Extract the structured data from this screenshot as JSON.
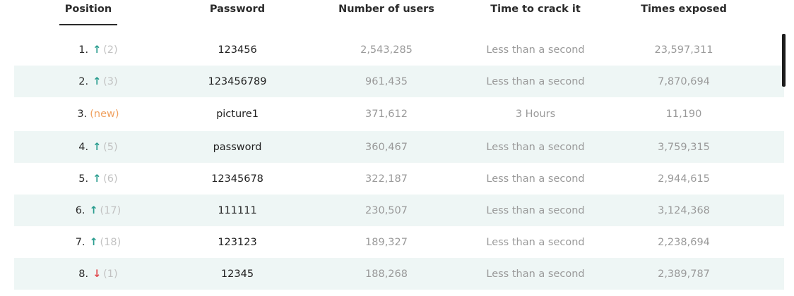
{
  "header": {
    "position": "Position",
    "password": "Password",
    "users": "Number of users",
    "time": "Time to crack it",
    "exposed": "Times exposed"
  },
  "colors": {
    "row_alt": "#eef6f5",
    "arrow_up": "#2a9d8f",
    "arrow_down": "#e0474c",
    "new_badge": "#f0a160",
    "muted": "#9a9a9a"
  },
  "rows": [
    {
      "rank": "1.",
      "trend": "up",
      "trend_icon": "arrow-up-icon",
      "arrow": "↑",
      "prev": "(2)",
      "password": "123456",
      "users": "2,543,285",
      "time": "Less than a second",
      "exposed": "23,597,311"
    },
    {
      "rank": "2.",
      "trend": "up",
      "trend_icon": "arrow-up-icon",
      "arrow": "↑",
      "prev": "(3)",
      "password": "123456789",
      "users": "961,435",
      "time": "Less than a second",
      "exposed": "7,870,694"
    },
    {
      "rank": "3.",
      "trend": "new",
      "trend_icon": "",
      "arrow": "",
      "prev": "(new)",
      "password": "picture1",
      "users": "371,612",
      "time": "3 Hours",
      "exposed": "11,190"
    },
    {
      "rank": "4.",
      "trend": "up",
      "trend_icon": "arrow-up-icon",
      "arrow": "↑",
      "prev": "(5)",
      "password": "password",
      "users": "360,467",
      "time": "Less than a second",
      "exposed": "3,759,315"
    },
    {
      "rank": "5.",
      "trend": "up",
      "trend_icon": "arrow-up-icon",
      "arrow": "↑",
      "prev": "(6)",
      "password": "12345678",
      "users": "322,187",
      "time": "Less than a second",
      "exposed": "2,944,615"
    },
    {
      "rank": "6.",
      "trend": "up",
      "trend_icon": "arrow-up-icon",
      "arrow": "↑",
      "prev": "(17)",
      "password": "111111",
      "users": "230,507",
      "time": "Less than a second",
      "exposed": "3,124,368"
    },
    {
      "rank": "7.",
      "trend": "up",
      "trend_icon": "arrow-up-icon",
      "arrow": "↑",
      "prev": "(18)",
      "password": "123123",
      "users": "189,327",
      "time": "Less than a second",
      "exposed": "2,238,694"
    },
    {
      "rank": "8.",
      "trend": "down",
      "trend_icon": "arrow-down-icon",
      "arrow": "↓",
      "prev": "(1)",
      "password": "12345",
      "users": "188,268",
      "time": "Less than a second",
      "exposed": "2,389,787"
    }
  ]
}
